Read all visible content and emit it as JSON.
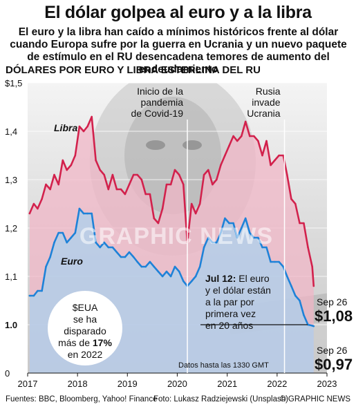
{
  "title": "El dólar golpea al euro y a la libra",
  "subtitle": "El euro y la libra han caído a mínimos históricos frente al dólar cuando Europa sufre por la guerra en Ucrania y un nuevo paquete de estímulo en el RU desencadena temores de aumento del endeudamiento",
  "section_title": "DÓLARES POR EURO Y LIBRA ESTERLINA DEL RU",
  "colors": {
    "libra": "#d2214c",
    "euro": "#1e82d8",
    "libra_fill": "#f1b6c6",
    "euro_fill": "#a9d1ef"
  },
  "chart_data": {
    "type": "area",
    "xlabel": "",
    "ylabel": "",
    "ylim": [
      0,
      1.5
    ],
    "xlim": [
      "2017-01-01",
      "2023-01-01"
    ],
    "yticks": [
      "$1,5",
      "1,4",
      "1,3",
      "1,2",
      "1,1",
      "1.0",
      "0"
    ],
    "yticks_values": [
      1.5,
      1.4,
      1.3,
      1.2,
      1.1,
      1.0,
      0
    ],
    "xticks": [
      "2017",
      "2018",
      "2019",
      "2020",
      "2021",
      "2022",
      "2023"
    ],
    "grid": true,
    "series": [
      {
        "name": "Libra",
        "x": [
          "2017-01",
          "2017-02",
          "2017-03",
          "2017-04",
          "2017-05",
          "2017-06",
          "2017-07",
          "2017-08",
          "2017-09",
          "2017-10",
          "2017-11",
          "2017-12",
          "2018-01",
          "2018-02",
          "2018-03",
          "2018-04",
          "2018-05",
          "2018-06",
          "2018-07",
          "2018-08",
          "2018-09",
          "2018-10",
          "2018-11",
          "2018-12",
          "2019-01",
          "2019-02",
          "2019-03",
          "2019-04",
          "2019-05",
          "2019-06",
          "2019-07",
          "2019-08",
          "2019-09",
          "2019-10",
          "2019-11",
          "2019-12",
          "2020-01",
          "2020-02",
          "2020-03",
          "2020-04",
          "2020-05",
          "2020-06",
          "2020-07",
          "2020-08",
          "2020-09",
          "2020-10",
          "2020-11",
          "2020-12",
          "2021-01",
          "2021-02",
          "2021-03",
          "2021-04",
          "2021-05",
          "2021-06",
          "2021-07",
          "2021-08",
          "2021-09",
          "2021-10",
          "2021-11",
          "2021-12",
          "2022-01",
          "2022-02",
          "2022-03",
          "2022-04",
          "2022-05",
          "2022-06",
          "2022-07",
          "2022-08",
          "2022-09",
          "2022-09-26"
        ],
        "values": [
          1.23,
          1.25,
          1.24,
          1.26,
          1.29,
          1.28,
          1.31,
          1.29,
          1.34,
          1.32,
          1.33,
          1.35,
          1.41,
          1.4,
          1.41,
          1.43,
          1.34,
          1.32,
          1.31,
          1.28,
          1.31,
          1.28,
          1.28,
          1.27,
          1.29,
          1.31,
          1.31,
          1.3,
          1.27,
          1.27,
          1.22,
          1.21,
          1.24,
          1.29,
          1.29,
          1.32,
          1.31,
          1.29,
          1.17,
          1.25,
          1.23,
          1.25,
          1.31,
          1.32,
          1.29,
          1.3,
          1.33,
          1.35,
          1.37,
          1.39,
          1.38,
          1.39,
          1.42,
          1.39,
          1.39,
          1.38,
          1.35,
          1.38,
          1.33,
          1.34,
          1.35,
          1.35,
          1.31,
          1.26,
          1.25,
          1.21,
          1.21,
          1.16,
          1.12,
          1.08
        ]
      },
      {
        "name": "Euro",
        "x": [
          "2017-01",
          "2017-02",
          "2017-03",
          "2017-04",
          "2017-05",
          "2017-06",
          "2017-07",
          "2017-08",
          "2017-09",
          "2017-10",
          "2017-11",
          "2017-12",
          "2018-01",
          "2018-02",
          "2018-03",
          "2018-04",
          "2018-05",
          "2018-06",
          "2018-07",
          "2018-08",
          "2018-09",
          "2018-10",
          "2018-11",
          "2018-12",
          "2019-01",
          "2019-02",
          "2019-03",
          "2019-04",
          "2019-05",
          "2019-06",
          "2019-07",
          "2019-08",
          "2019-09",
          "2019-10",
          "2019-11",
          "2019-12",
          "2020-01",
          "2020-02",
          "2020-03",
          "2020-04",
          "2020-05",
          "2020-06",
          "2020-07",
          "2020-08",
          "2020-09",
          "2020-10",
          "2020-11",
          "2020-12",
          "2021-01",
          "2021-02",
          "2021-03",
          "2021-04",
          "2021-05",
          "2021-06",
          "2021-07",
          "2021-08",
          "2021-09",
          "2021-10",
          "2021-11",
          "2021-12",
          "2022-01",
          "2022-02",
          "2022-03",
          "2022-04",
          "2022-05",
          "2022-06",
          "2022-07",
          "2022-08",
          "2022-09",
          "2022-09-26"
        ],
        "values": [
          1.06,
          1.06,
          1.07,
          1.07,
          1.12,
          1.14,
          1.17,
          1.19,
          1.19,
          1.17,
          1.18,
          1.19,
          1.24,
          1.23,
          1.23,
          1.23,
          1.17,
          1.16,
          1.17,
          1.16,
          1.16,
          1.15,
          1.14,
          1.14,
          1.15,
          1.14,
          1.13,
          1.12,
          1.12,
          1.13,
          1.12,
          1.11,
          1.1,
          1.11,
          1.1,
          1.12,
          1.11,
          1.09,
          1.08,
          1.09,
          1.1,
          1.12,
          1.16,
          1.18,
          1.17,
          1.17,
          1.19,
          1.22,
          1.21,
          1.21,
          1.18,
          1.2,
          1.22,
          1.19,
          1.18,
          1.18,
          1.16,
          1.16,
          1.13,
          1.13,
          1.13,
          1.12,
          1.1,
          1.08,
          1.06,
          1.05,
          1.02,
          1.0,
          0.98,
          0.97
        ]
      }
    ],
    "parity_level": 1.0,
    "annotations": {
      "covid": {
        "date": "2020-03",
        "text_lines": [
          "Inicio de la",
          "pandemia",
          "de Covid-19"
        ]
      },
      "ukraine": {
        "date": "2022-02-24",
        "text_lines": [
          "Rusia",
          "invade",
          "Ucrania"
        ]
      },
      "jul12": {
        "bold": "Jul 12:",
        "text_lines": [
          "El euro",
          "y el dólar están",
          "a la par por",
          "primera vez",
          "en 20 años"
        ]
      },
      "bubble": {
        "text_lines": [
          "$EUA",
          "se ha",
          "disparado",
          "más de "
        ],
        "percent": "17%",
        "year_line": "en 2022"
      },
      "libra_end": {
        "date_label": "Sep 26",
        "value_label": "$1,08"
      },
      "euro_end": {
        "date_label": "Sep 26",
        "value_label": "$0,97"
      },
      "data_note": "Datos hasta las 1330 GMT",
      "watermark": "GRAPHIC NEWS",
      "libra_label": "Libra",
      "euro_label": "Euro"
    }
  },
  "footer": {
    "sources": "Fuentes: BBC, Bloomberg, Yahoo! Finance",
    "photo": "Foto: Lukasz Radziejewski (Unsplash)",
    "credit": "© GRAPHIC NEWS"
  }
}
